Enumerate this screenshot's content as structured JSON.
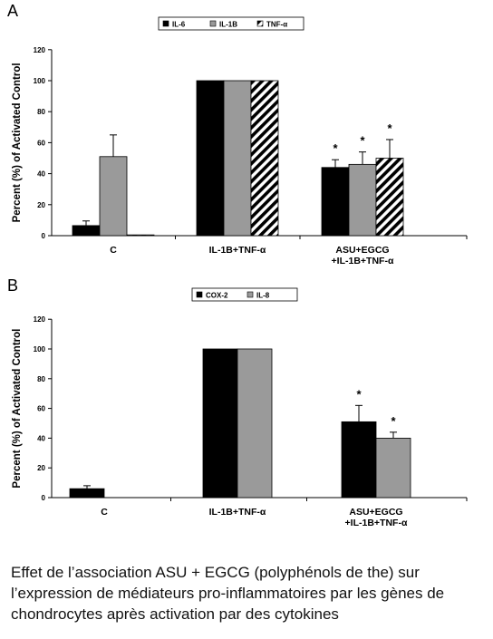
{
  "caption": "Effet de l’association ASU + EGCG (polyphénols de the) sur l’expression de médiateurs pro-inflammatoires par les gènes de chondrocytes après activation par des cytokines",
  "colors": {
    "black": "#000000",
    "gray": "#9a9a9a",
    "hatch": "#000000"
  },
  "chart_data": [
    {
      "panel": "A",
      "type": "bar",
      "title": "",
      "xlabel": "",
      "ylabel": "Percent (%) of Activated Control",
      "ylim": [
        0,
        120
      ],
      "yticks": [
        "0",
        "20",
        "40",
        "60",
        "80",
        "100",
        "120"
      ],
      "categories": [
        "C",
        "IL-1B+TNF-α",
        "ASU+EGCG\n+IL-1B+TNF-α"
      ],
      "legend_position": "top-center",
      "series": [
        {
          "name": "IL-6",
          "fill": "black",
          "values": [
            6.5,
            100,
            44
          ],
          "errors": [
            3,
            0,
            5
          ],
          "asterisk": [
            false,
            false,
            true
          ]
        },
        {
          "name": "IL-1B",
          "fill": "gray",
          "values": [
            51,
            100,
            46
          ],
          "errors": [
            14,
            0,
            8
          ],
          "asterisk": [
            false,
            false,
            true
          ]
        },
        {
          "name": "TNF-α",
          "fill": "hatch",
          "values": [
            0.5,
            100,
            50
          ],
          "errors": [
            0,
            0,
            12
          ],
          "asterisk": [
            false,
            false,
            true
          ]
        }
      ],
      "annotations": [
        "*",
        "*",
        "*"
      ]
    },
    {
      "panel": "B",
      "type": "bar",
      "title": "",
      "xlabel": "",
      "ylabel": "Percent (%) of Activated Control",
      "ylim": [
        0,
        120
      ],
      "yticks": [
        "0",
        "20",
        "40",
        "60",
        "80",
        "100",
        "120"
      ],
      "categories": [
        "C",
        "IL-1B+TNF-α",
        "ASU+EGCG\n+IL-1B+TNF-α"
      ],
      "legend_position": "top-center",
      "series": [
        {
          "name": "COX-2",
          "fill": "black",
          "values": [
            6,
            100,
            51
          ],
          "errors": [
            2,
            0,
            11
          ],
          "asterisk": [
            false,
            false,
            true
          ]
        },
        {
          "name": "IL-8",
          "fill": "gray",
          "values": [
            0,
            100,
            40
          ],
          "errors": [
            0,
            0,
            4
          ],
          "asterisk": [
            false,
            false,
            true
          ]
        }
      ],
      "annotations": [
        "*",
        "*"
      ]
    }
  ]
}
